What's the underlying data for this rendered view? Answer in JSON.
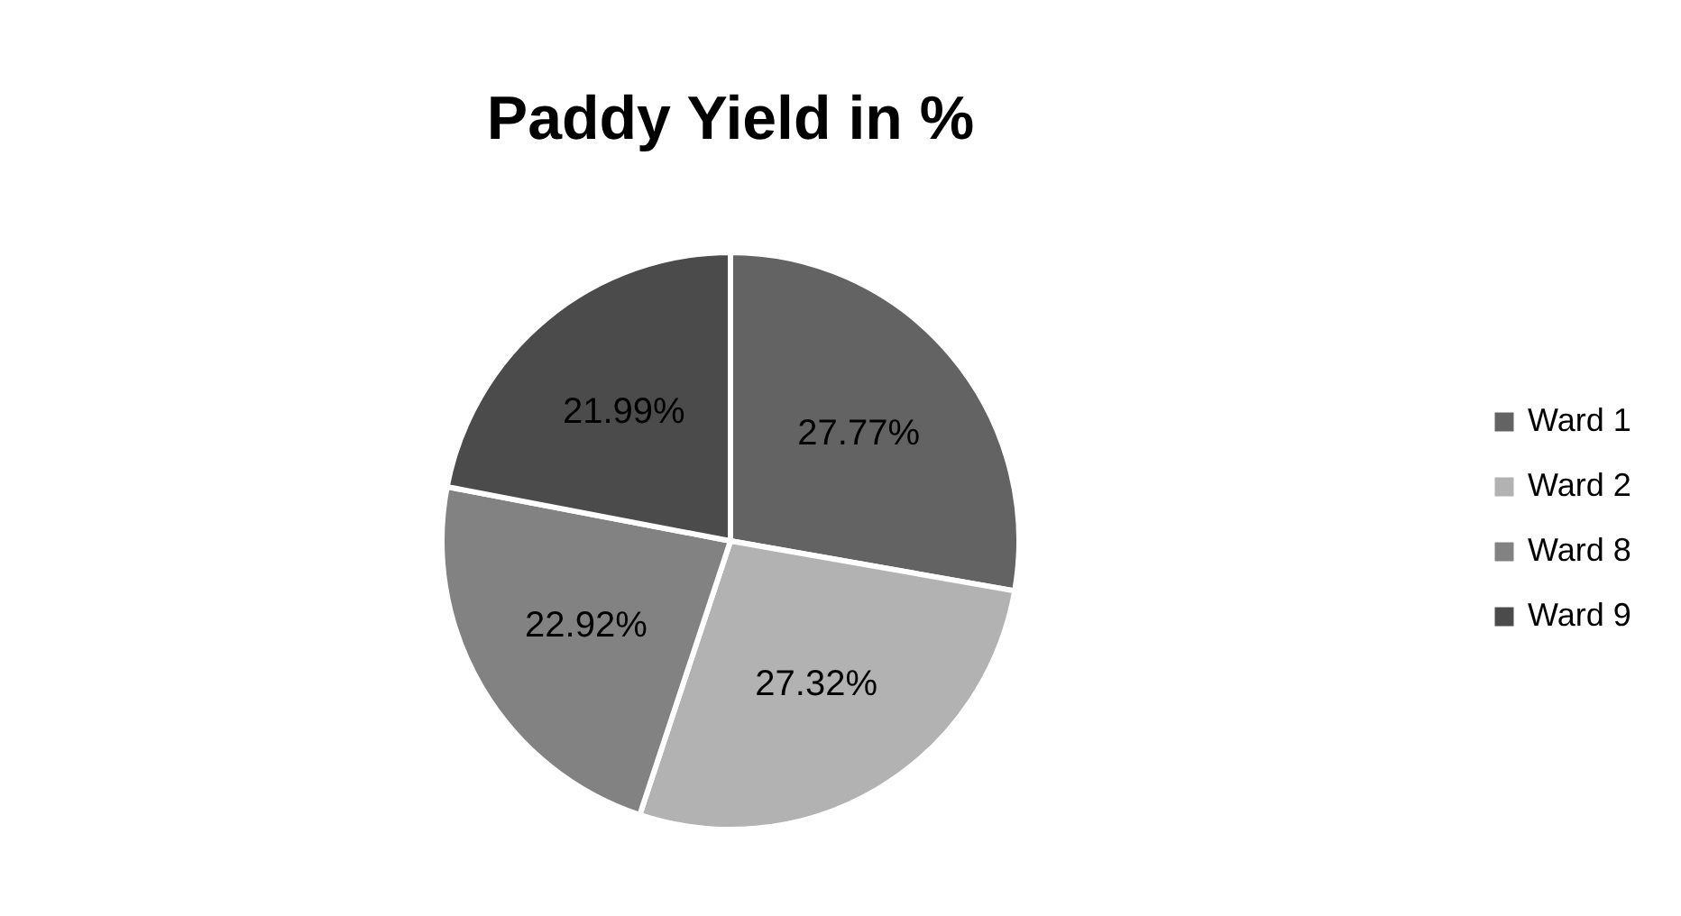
{
  "chart_data": {
    "type": "pie",
    "title": "Paddy Yield in %",
    "categories": [
      "Ward 1",
      "Ward 2",
      "Ward 8",
      "Ward 9"
    ],
    "values": [
      27.77,
      27.32,
      22.92,
      21.99
    ],
    "colors": [
      "#636363",
      "#b2b2b2",
      "#828282",
      "#4b4b4b"
    ],
    "value_labels": [
      "27.77%",
      "27.32%",
      "22.92%",
      "21.99%"
    ],
    "legend": "right"
  }
}
